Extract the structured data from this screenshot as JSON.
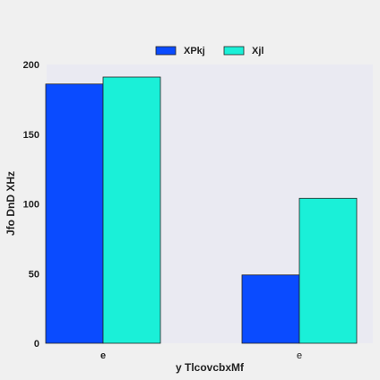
{
  "chart_data": {
    "type": "bar",
    "categories": [
      "e",
      "e"
    ],
    "series": [
      {
        "name": "XPkj",
        "values": [
          186,
          49
        ],
        "color": "#0a4bff"
      },
      {
        "name": "Xjl",
        "values": [
          191,
          104
        ],
        "color": "#1af0d8"
      }
    ],
    "xlabel": "y TlcovcbxMf",
    "ylabel": "Jfo DnD XHz",
    "ylim": [
      0,
      200
    ],
    "yticks": [
      0,
      50,
      100,
      150,
      200
    ],
    "grid": false,
    "legend_position": "top-center",
    "plot_background": "#eaeaf2"
  }
}
